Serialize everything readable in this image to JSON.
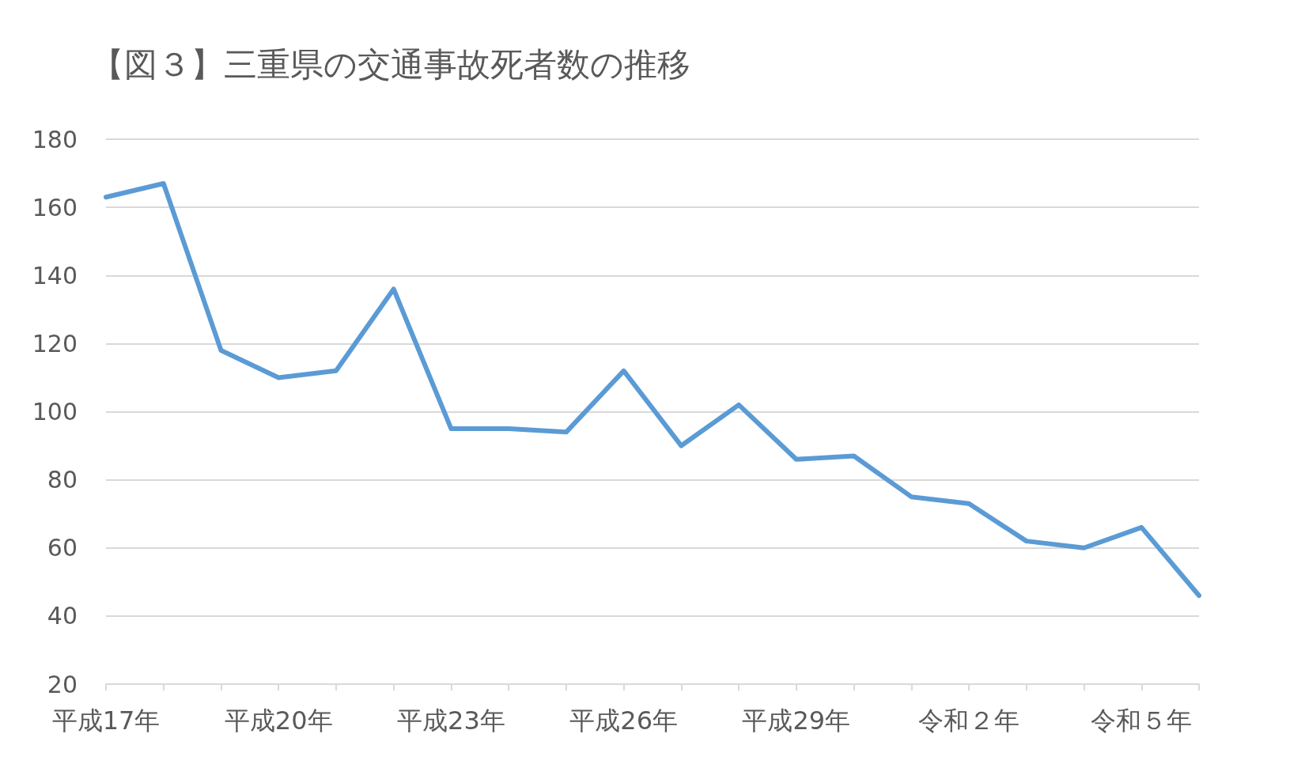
{
  "chart_data": {
    "type": "line",
    "title": "【図３】三重県の交通事故死者数の推移",
    "categories": [
      "平成17年",
      null,
      null,
      "平成20年",
      null,
      null,
      "平成23年",
      null,
      null,
      "平成26年",
      null,
      null,
      "平成29年",
      null,
      null,
      "令和２年",
      null,
      null,
      "令和５年",
      null
    ],
    "series": [
      {
        "color": "#5b9bd5",
        "values": [
          163,
          167,
          118,
          110,
          112,
          136,
          95,
          95,
          94,
          112,
          90,
          102,
          86,
          87,
          75,
          73,
          62,
          60,
          66,
          46
        ]
      }
    ],
    "ylim": [
      20,
      180
    ],
    "yticks": [
      20,
      40,
      60,
      80,
      100,
      120,
      140,
      160,
      180
    ],
    "grid": "y",
    "marker": "none",
    "line_style": "solid"
  }
}
